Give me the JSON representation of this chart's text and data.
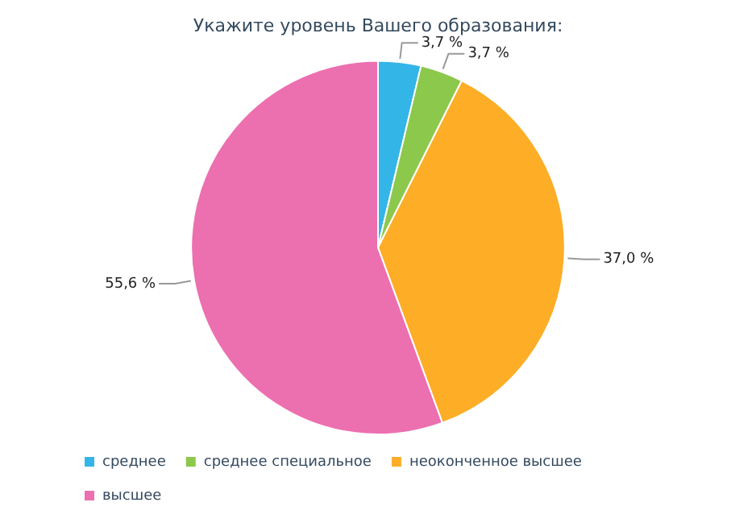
{
  "chart_data": {
    "type": "pie",
    "title": "Укажите уровень Вашего образования:",
    "categories": [
      "среднее",
      "среднее специальное",
      "неоконченное высшее",
      "высшее"
    ],
    "values": [
      3.7,
      3.7,
      37.0,
      55.6
    ],
    "colors": [
      "#33b5e8",
      "#8cc84b",
      "#fdad26",
      "#ec6fb0"
    ],
    "value_labels": [
      "3,7 %",
      "3,7 %",
      "37,0 %",
      "55,6 %"
    ],
    "legend": "bottom left"
  }
}
